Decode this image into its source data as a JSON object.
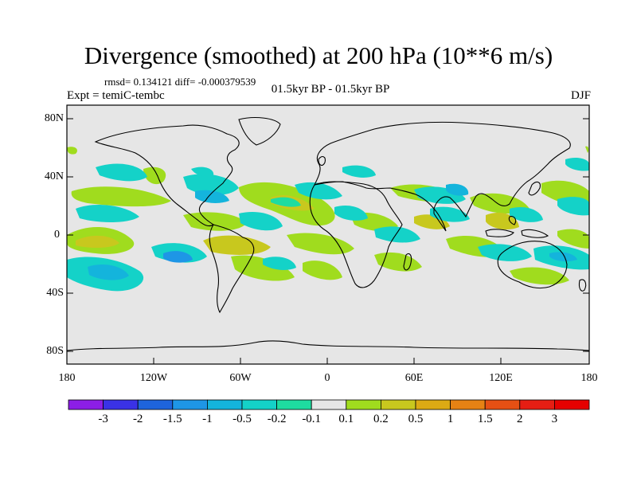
{
  "title": "Divergence (smoothed) at 200 hPa (10**6 m/s)",
  "stats": "rmsd= 0.134121 diff= -0.000379539",
  "experiment": "Expt = temiC-tembc",
  "period": "01.5kyr BP - 01.5kyr BP",
  "season": "DJF",
  "y_axis_labels": [
    "80N",
    "40N",
    "0",
    "40S",
    "80S"
  ],
  "x_axis_labels": [
    "180",
    "120W",
    "60W",
    "0",
    "60E",
    "120E",
    "180"
  ],
  "colorbar": {
    "labels": [
      "-3",
      "-2",
      "-1.5",
      "-1",
      "-0.5",
      "-0.2",
      "-0.1",
      "0.1",
      "0.2",
      "0.5",
      "1",
      "1.5",
      "2",
      "3"
    ],
    "colors": [
      "#8c1ee6",
      "#3a32e6",
      "#1e64dc",
      "#1e96e6",
      "#14b4dc",
      "#14d2c8",
      "#1edca0",
      "#e6e6e6",
      "#a0dc1e",
      "#c8c81e",
      "#dcaa14",
      "#e68214",
      "#e65014",
      "#e61e14",
      "#e60000"
    ]
  },
  "colors": {
    "background": "#e6e6e6",
    "negative_light": "#14d2c8",
    "negative": "#14b4dc",
    "negative_strong": "#1e96e6",
    "positive_light": "#a0dc1e",
    "positive": "#c8c81e"
  }
}
